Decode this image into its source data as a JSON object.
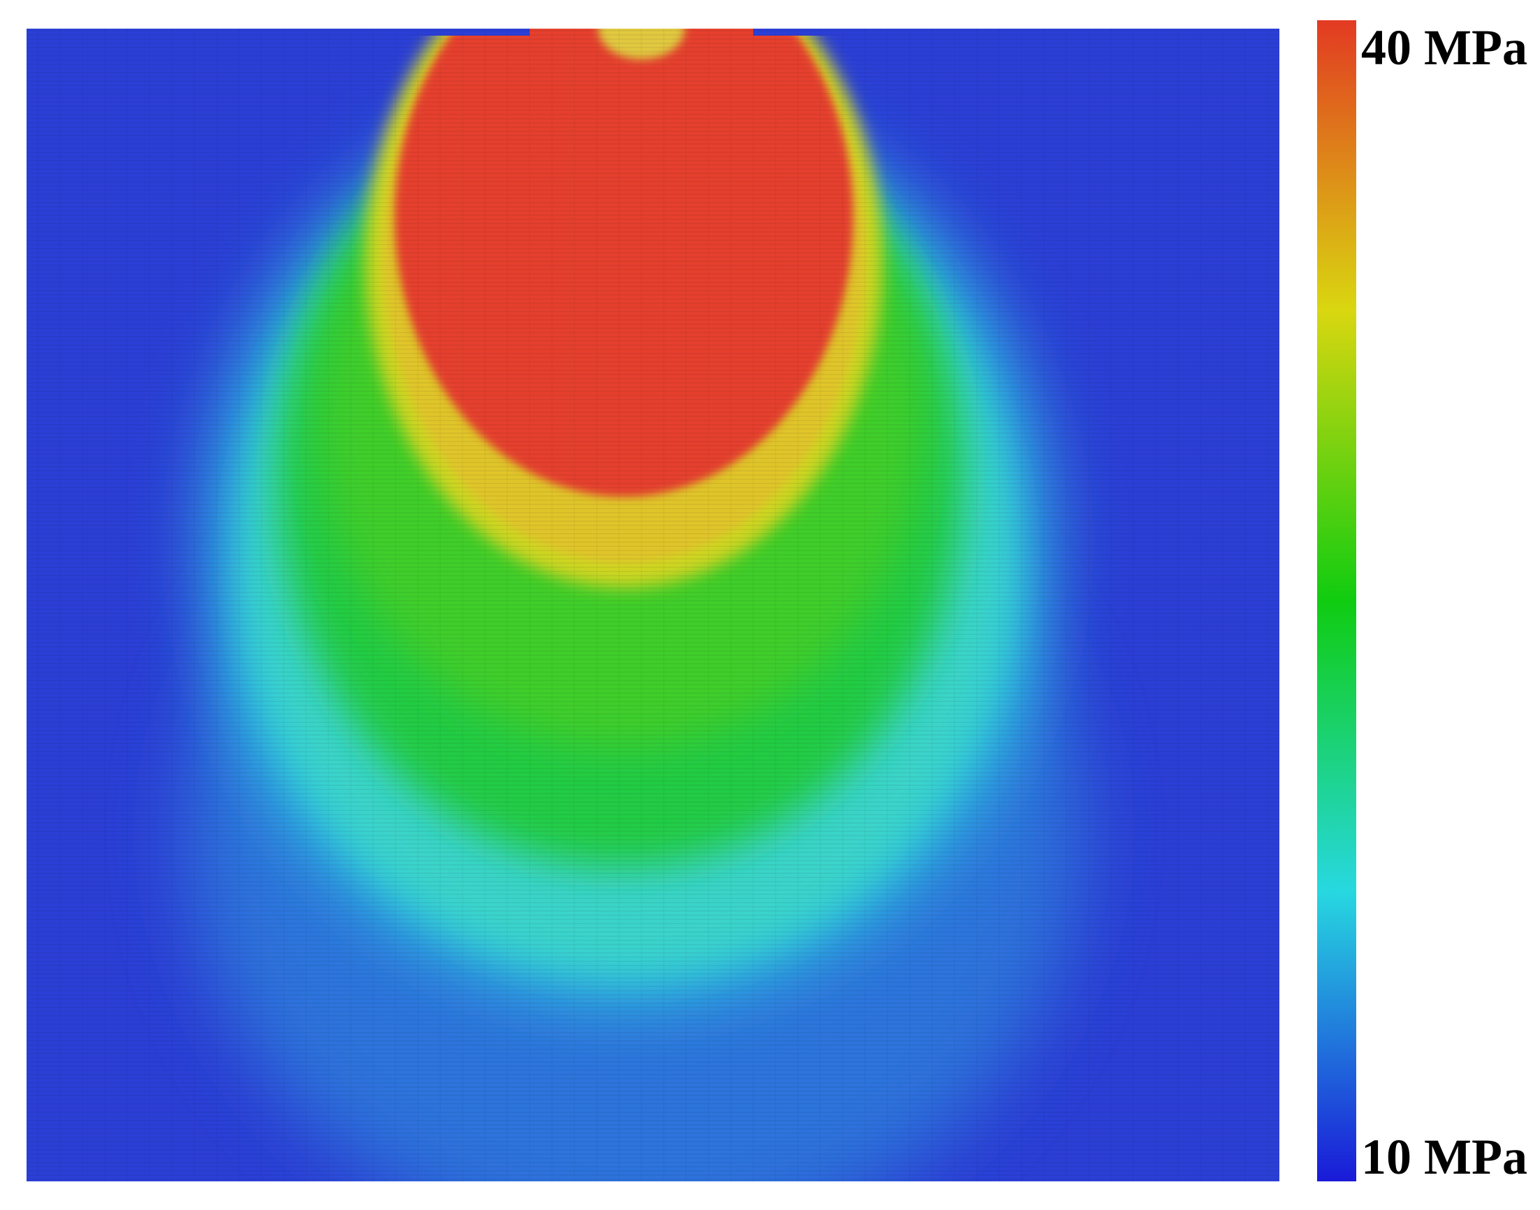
{
  "chart_data": {
    "type": "heatmap",
    "title": "",
    "xlabel": "",
    "ylabel": "",
    "colorbar": {
      "min_label": "10 MPa",
      "max_label": "40 MPa",
      "min_value": 10,
      "max_value": 40,
      "unit": "MPa",
      "colormap": "jet",
      "stops": [
        {
          "value": 10,
          "color": "#1a1ad8"
        },
        {
          "value": 17.5,
          "color": "#27d8e0"
        },
        {
          "value": 25,
          "color": "#10cc10"
        },
        {
          "value": 32.5,
          "color": "#d9d710"
        },
        {
          "value": 40,
          "color": "#e23a22"
        }
      ]
    },
    "field": {
      "background_value": 10,
      "peak_value": 40,
      "description_zones": [
        {
          "name": "core",
          "value": 40,
          "color": "#e5412e"
        },
        {
          "name": "inner-ring",
          "value": 32.5,
          "color": "#e0d82a"
        },
        {
          "name": "middle-zone",
          "value": 25,
          "color": "#22cc33"
        },
        {
          "name": "outer-ring",
          "value": 17.5,
          "color": "#2fd8e2"
        },
        {
          "name": "background",
          "value": 10,
          "color": "#2a3ed4"
        }
      ]
    },
    "grid": true
  }
}
